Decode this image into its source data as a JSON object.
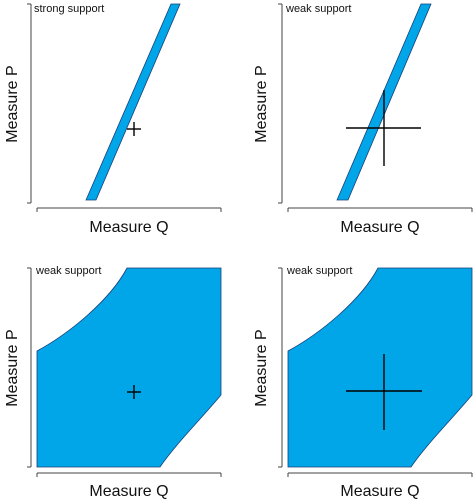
{
  "band_color": "#00a6e8",
  "band_edge_color": "#1a3f7a",
  "panels": [
    {
      "title": "strong support",
      "xlabel": "Measure Q",
      "ylabel": "Measure P",
      "band": "narrow",
      "cross": "small"
    },
    {
      "title": "weak support",
      "xlabel": "Measure Q",
      "ylabel": "Measure P",
      "band": "narrow",
      "cross": "large"
    },
    {
      "title": "weak support",
      "xlabel": "Measure Q",
      "ylabel": "Measure P",
      "band": "wide",
      "cross": "small"
    },
    {
      "title": "weak support",
      "xlabel": "Measure Q",
      "ylabel": "Measure P",
      "band": "wide",
      "cross": "large"
    }
  ]
}
